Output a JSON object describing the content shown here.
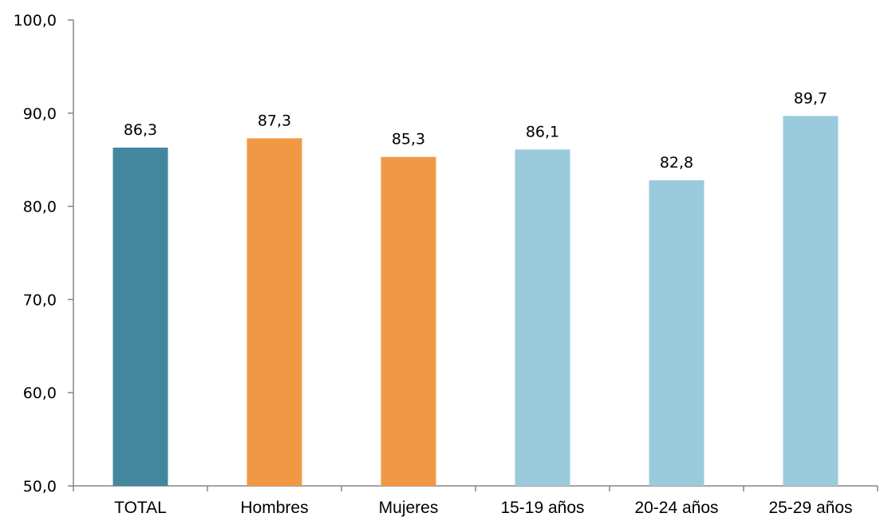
{
  "chart_data": {
    "type": "bar",
    "title": "",
    "xlabel": "",
    "ylabel": "",
    "categories": [
      "TOTAL",
      "Hombres",
      "Mujeres",
      "15-19 años",
      "20-24 años",
      "25-29 años"
    ],
    "values": [
      86.3,
      87.3,
      85.3,
      86.1,
      82.8,
      89.7
    ],
    "value_labels": [
      "86,3",
      "87,3",
      "85,3",
      "86,1",
      "82,8",
      "89,7"
    ],
    "colors": [
      "#43879e",
      "#f19845",
      "#f19845",
      "#9acbdc",
      "#9acbdc",
      "#9acbdc"
    ],
    "ylim": [
      50,
      100
    ],
    "yticks": [
      50,
      60,
      70,
      80,
      90,
      100
    ],
    "ytick_labels": [
      "50,0",
      "60,0",
      "70,0",
      "80,0",
      "90,0",
      "100,0"
    ],
    "grid": false,
    "legend": "none",
    "axis_color": "#868686"
  }
}
